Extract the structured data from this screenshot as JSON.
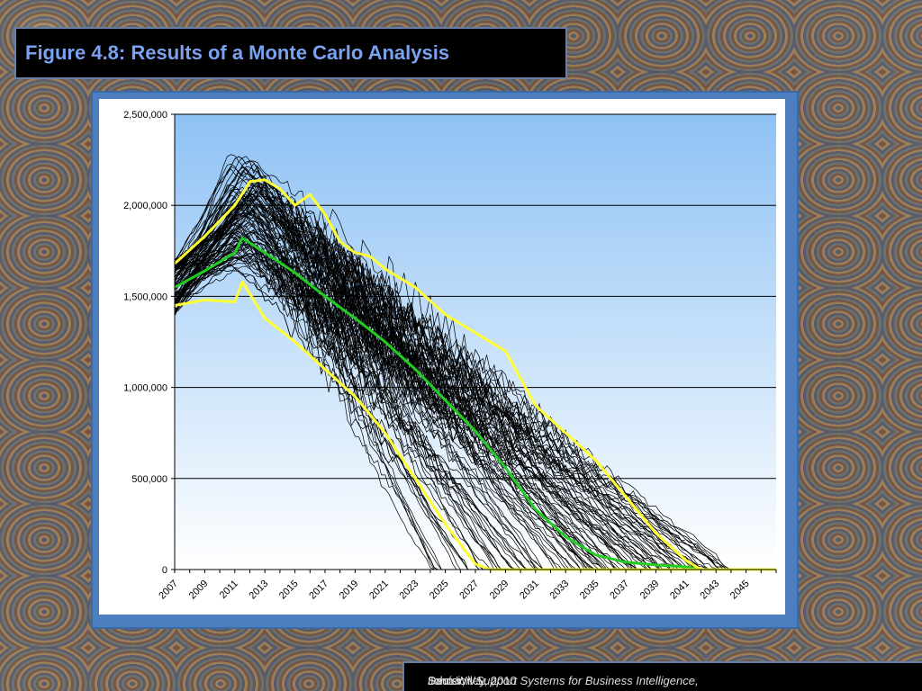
{
  "slide": {
    "title": "Figure 4.8:  Results of a Monte Carlo Analysis",
    "citation_author": "Sauter, V.L. , ",
    "citation_book": "Decision Support Systems for Business Intelligence,",
    "citation_publisher": " John Wiley, 2010"
  },
  "colors": {
    "plot_top": "#8ec2f5",
    "plot_bottom": "#ffffff",
    "frame": "#4d7fc0",
    "paths": "#000000",
    "band": "#ffff33",
    "median": "#22cc22"
  },
  "chart_data": {
    "type": "line",
    "title": "",
    "xlabel": "",
    "ylabel": "",
    "xlim": [
      2007,
      2047
    ],
    "ylim": [
      0,
      2500000
    ],
    "x_ticks": [
      "2007",
      "2009",
      "2011",
      "2013",
      "2015",
      "2017",
      "2019",
      "2021",
      "2023",
      "2025",
      "2027",
      "2029",
      "2031",
      "2033",
      "2035",
      "2037",
      "2039",
      "2041",
      "2043",
      "2045"
    ],
    "y_ticks": [
      "0",
      "500,000",
      "1,000,000",
      "1,500,000",
      "2,000,000",
      "2,500,000"
    ],
    "y_tick_values": [
      0,
      500000,
      1000000,
      1500000,
      2000000,
      2500000
    ],
    "grid": true,
    "simulated_paths": 120,
    "series": [
      {
        "role": "median",
        "x": [
          2007,
          2009,
          2011,
          2011.5,
          2013,
          2015,
          2017,
          2019,
          2021,
          2023,
          2025,
          2027,
          2029,
          2031,
          2033,
          2035,
          2037,
          2039,
          2041,
          2042
        ],
        "values": [
          1550000,
          1640000,
          1740000,
          1820000,
          1740000,
          1630000,
          1500000,
          1380000,
          1250000,
          1100000,
          930000,
          760000,
          560000,
          330000,
          180000,
          80000,
          40000,
          25000,
          15000,
          0
        ]
      },
      {
        "role": "upper",
        "x": [
          2007,
          2009,
          2011,
          2012,
          2013,
          2014,
          2015,
          2016,
          2017,
          2018,
          2019,
          2020,
          2021,
          2023,
          2025,
          2027,
          2029,
          2031,
          2033,
          2035,
          2037,
          2039,
          2041,
          2042,
          2047
        ],
        "values": [
          1680000,
          1830000,
          2000000,
          2130000,
          2140000,
          2090000,
          2000000,
          2060000,
          1950000,
          1800000,
          1740000,
          1720000,
          1650000,
          1550000,
          1400000,
          1300000,
          1200000,
          900000,
          750000,
          600000,
          400000,
          200000,
          50000,
          0,
          0
        ]
      },
      {
        "role": "lower",
        "x": [
          2007,
          2009,
          2011,
          2011.5,
          2013,
          2015,
          2017,
          2019,
          2021,
          2023,
          2025,
          2027,
          2028,
          2047
        ],
        "values": [
          1450000,
          1480000,
          1470000,
          1580000,
          1380000,
          1250000,
          1100000,
          950000,
          750000,
          500000,
          250000,
          30000,
          0,
          0
        ]
      }
    ]
  }
}
